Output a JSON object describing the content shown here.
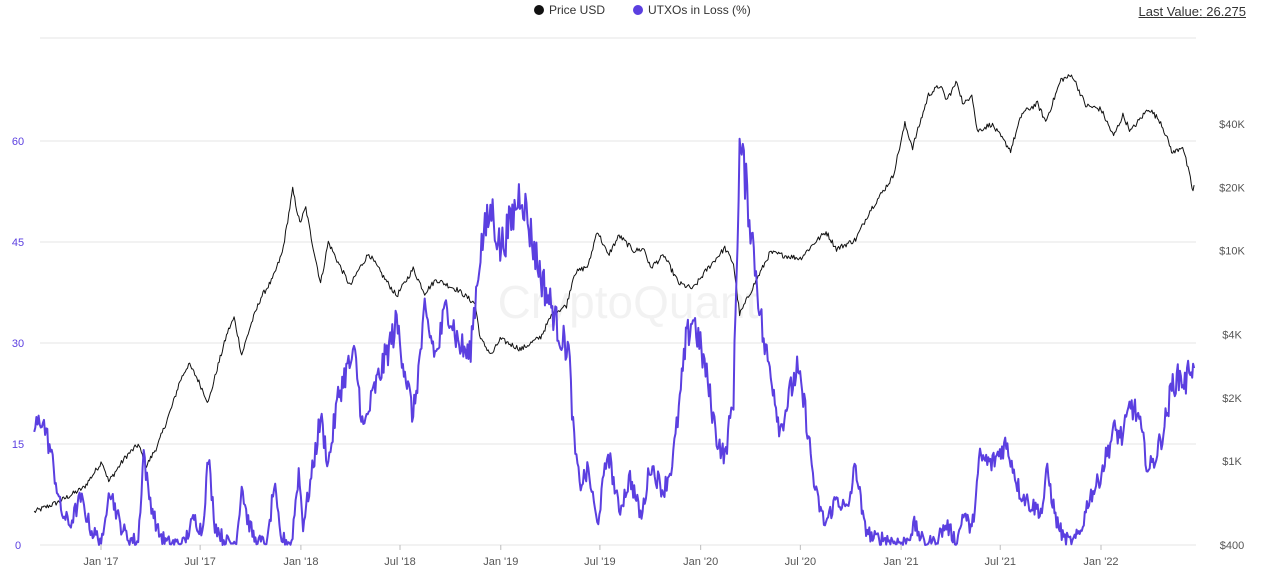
{
  "legend": {
    "price_label": "Price USD",
    "utxo_label": "UTXOs in Loss (%)"
  },
  "last_value": {
    "label": "Last Value:",
    "value": "26.275"
  },
  "watermark": "CryptoQuant",
  "colors": {
    "price": "#111111",
    "utxo": "#5b3fe0",
    "left_axis": "#5b3fe0",
    "right_axis": "#555555",
    "grid": "#e6e6e6"
  },
  "chart_data": {
    "type": "line",
    "x_labels": [
      "Jan '17",
      "Jul '17",
      "Jan '18",
      "Jul '18",
      "Jan '19",
      "Jul '19",
      "Jan '20",
      "Jul '20",
      "Jan '21",
      "Jul '21",
      "Jan '22"
    ],
    "x_range": [
      "2016-09-01",
      "2022-06-20"
    ],
    "left_axis": {
      "ticks": [
        "0",
        "15",
        "30",
        "45",
        "60"
      ],
      "range": [
        0,
        60
      ],
      "series": "UTXOs in Loss (%)"
    },
    "right_axis": {
      "ticks": [
        "$400",
        "$1K",
        "$2K",
        "$4K",
        "$10K",
        "$20K",
        "$40K"
      ],
      "scale": "log",
      "series": "Price USD"
    },
    "grid": true,
    "legend_position": "top-center",
    "series": [
      {
        "name": "Price USD",
        "axis": "right",
        "points": [
          [
            "2016-09-01",
            575
          ],
          [
            "2016-10-15",
            640
          ],
          [
            "2016-12-01",
            750
          ],
          [
            "2017-01-03",
            1000
          ],
          [
            "2017-01-15",
            800
          ],
          [
            "2017-02-15",
            1050
          ],
          [
            "2017-03-10",
            1200
          ],
          [
            "2017-03-25",
            950
          ],
          [
            "2017-04-15",
            1200
          ],
          [
            "2017-05-10",
            1800
          ],
          [
            "2017-05-25",
            2400
          ],
          [
            "2017-06-10",
            2900
          ],
          [
            "2017-06-25",
            2500
          ],
          [
            "2017-07-16",
            1900
          ],
          [
            "2017-08-01",
            2750
          ],
          [
            "2017-08-20",
            4100
          ],
          [
            "2017-09-01",
            4800
          ],
          [
            "2017-09-15",
            3200
          ],
          [
            "2017-10-01",
            4400
          ],
          [
            "2017-10-20",
            6000
          ],
          [
            "2017-11-10",
            7300
          ],
          [
            "2017-11-28",
            9800
          ],
          [
            "2017-12-10",
            15000
          ],
          [
            "2017-12-17",
            19500
          ],
          [
            "2017-12-30",
            13500
          ],
          [
            "2018-01-10",
            16000
          ],
          [
            "2018-01-20",
            11500
          ],
          [
            "2018-02-06",
            7000
          ],
          [
            "2018-02-20",
            11000
          ],
          [
            "2018-03-10",
            8800
          ],
          [
            "2018-04-01",
            6800
          ],
          [
            "2018-04-15",
            8000
          ],
          [
            "2018-05-05",
            9700
          ],
          [
            "2018-06-01",
            7500
          ],
          [
            "2018-06-25",
            6100
          ],
          [
            "2018-07-25",
            8200
          ],
          [
            "2018-08-15",
            6300
          ],
          [
            "2018-09-05",
            7300
          ],
          [
            "2018-10-15",
            6500
          ],
          [
            "2018-11-15",
            5600
          ],
          [
            "2018-11-25",
            3800
          ],
          [
            "2018-12-15",
            3200
          ],
          [
            "2018-12-31",
            3800
          ],
          [
            "2019-02-07",
            3400
          ],
          [
            "2019-03-15",
            3900
          ],
          [
            "2019-04-05",
            5000
          ],
          [
            "2019-05-01",
            5500
          ],
          [
            "2019-05-15",
            7800
          ],
          [
            "2019-06-10",
            8500
          ],
          [
            "2019-06-26",
            12500
          ],
          [
            "2019-07-16",
            9500
          ],
          [
            "2019-08-05",
            11800
          ],
          [
            "2019-09-01",
            10000
          ],
          [
            "2019-09-20",
            10200
          ],
          [
            "2019-10-01",
            8300
          ],
          [
            "2019-10-26",
            9500
          ],
          [
            "2019-11-22",
            7000
          ],
          [
            "2019-12-18",
            6600
          ],
          [
            "2020-01-10",
            8000
          ],
          [
            "2020-02-14",
            10300
          ],
          [
            "2020-03-01",
            8700
          ],
          [
            "2020-03-12",
            5000
          ],
          [
            "2020-03-16",
            5200
          ],
          [
            "2020-04-05",
            6700
          ],
          [
            "2020-05-07",
            9800
          ],
          [
            "2020-06-01",
            9500
          ],
          [
            "2020-07-01",
            9200
          ],
          [
            "2020-07-28",
            11000
          ],
          [
            "2020-08-17",
            12300
          ],
          [
            "2020-09-05",
            10200
          ],
          [
            "2020-10-10",
            11300
          ],
          [
            "2020-11-05",
            15500
          ],
          [
            "2020-11-25",
            18500
          ],
          [
            "2020-12-17",
            22500
          ],
          [
            "2021-01-08",
            40000
          ],
          [
            "2021-01-22",
            31000
          ],
          [
            "2021-02-20",
            55000
          ],
          [
            "2021-03-13",
            61000
          ],
          [
            "2021-03-25",
            52000
          ],
          [
            "2021-04-13",
            63500
          ],
          [
            "2021-04-25",
            49000
          ],
          [
            "2021-05-10",
            56000
          ],
          [
            "2021-05-20",
            37000
          ],
          [
            "2021-06-15",
            40000
          ],
          [
            "2021-07-20",
            30000
          ],
          [
            "2021-08-10",
            45000
          ],
          [
            "2021-09-07",
            50000
          ],
          [
            "2021-09-22",
            41000
          ],
          [
            "2021-10-20",
            65000
          ],
          [
            "2021-11-10",
            68000
          ],
          [
            "2021-12-04",
            49000
          ],
          [
            "2022-01-01",
            47000
          ],
          [
            "2022-01-24",
            35000
          ],
          [
            "2022-02-10",
            44000
          ],
          [
            "2022-02-24",
            37000
          ],
          [
            "2022-03-29",
            47500
          ],
          [
            "2022-04-20",
            41000
          ],
          [
            "2022-05-12",
            29000
          ],
          [
            "2022-05-30",
            31500
          ],
          [
            "2022-06-13",
            22000
          ],
          [
            "2022-06-18",
            19000
          ],
          [
            "2022-06-20",
            20500
          ]
        ]
      },
      {
        "name": "UTXOs in Loss (%)",
        "axis": "left",
        "points": [
          [
            "2016-09-01",
            17
          ],
          [
            "2016-09-15",
            19
          ],
          [
            "2016-10-01",
            14
          ],
          [
            "2016-10-20",
            5
          ],
          [
            "2016-11-05",
            3
          ],
          [
            "2016-11-25",
            7
          ],
          [
            "2016-12-15",
            2
          ],
          [
            "2017-01-05",
            0.5
          ],
          [
            "2017-01-15",
            9
          ],
          [
            "2017-02-05",
            3
          ],
          [
            "2017-02-20",
            1
          ],
          [
            "2017-03-10",
            0.5
          ],
          [
            "2017-03-20",
            14
          ],
          [
            "2017-03-28",
            8
          ],
          [
            "2017-04-15",
            2
          ],
          [
            "2017-05-01",
            0.3
          ],
          [
            "2017-06-01",
            0.2
          ],
          [
            "2017-06-20",
            4
          ],
          [
            "2017-07-05",
            2
          ],
          [
            "2017-07-16",
            13
          ],
          [
            "2017-07-28",
            3
          ],
          [
            "2017-08-15",
            0.5
          ],
          [
            "2017-09-05",
            0.3
          ],
          [
            "2017-09-15",
            9
          ],
          [
            "2017-09-25",
            4
          ],
          [
            "2017-10-10",
            0.5
          ],
          [
            "2017-11-01",
            0.3
          ],
          [
            "2017-11-13",
            9
          ],
          [
            "2017-11-25",
            1
          ],
          [
            "2017-12-15",
            0.3
          ],
          [
            "2017-12-28",
            11
          ],
          [
            "2018-01-05",
            3
          ],
          [
            "2018-01-20",
            10
          ],
          [
            "2018-02-06",
            19
          ],
          [
            "2018-02-20",
            12
          ],
          [
            "2018-03-10",
            22
          ],
          [
            "2018-03-25",
            26
          ],
          [
            "2018-04-10",
            28
          ],
          [
            "2018-04-25",
            17
          ],
          [
            "2018-05-15",
            23
          ],
          [
            "2018-06-01",
            27
          ],
          [
            "2018-06-25",
            33
          ],
          [
            "2018-07-10",
            26
          ],
          [
            "2018-07-25",
            19
          ],
          [
            "2018-08-15",
            34
          ],
          [
            "2018-09-05",
            28
          ],
          [
            "2018-09-25",
            36
          ],
          [
            "2018-10-15",
            30
          ],
          [
            "2018-11-05",
            28
          ],
          [
            "2018-11-25",
            44
          ],
          [
            "2018-12-15",
            50
          ],
          [
            "2018-12-31",
            44
          ],
          [
            "2019-01-20",
            48
          ],
          [
            "2019-02-07",
            53
          ],
          [
            "2019-02-25",
            46
          ],
          [
            "2019-03-15",
            40
          ],
          [
            "2019-04-05",
            35
          ],
          [
            "2019-04-20",
            31
          ],
          [
            "2019-05-05",
            29
          ],
          [
            "2019-05-15",
            15
          ],
          [
            "2019-05-25",
            9
          ],
          [
            "2019-06-10",
            11
          ],
          [
            "2019-06-26",
            3
          ],
          [
            "2019-07-16",
            14
          ],
          [
            "2019-08-05",
            5
          ],
          [
            "2019-08-25",
            10
          ],
          [
            "2019-09-15",
            4
          ],
          [
            "2019-10-01",
            12
          ],
          [
            "2019-10-25",
            8
          ],
          [
            "2019-11-10",
            12
          ],
          [
            "2019-11-22",
            20
          ],
          [
            "2019-12-05",
            30
          ],
          [
            "2019-12-18",
            34
          ],
          [
            "2020-01-10",
            26
          ],
          [
            "2020-01-30",
            16
          ],
          [
            "2020-02-14",
            13
          ],
          [
            "2020-03-01",
            22
          ],
          [
            "2020-03-12",
            59
          ],
          [
            "2020-03-20",
            56
          ],
          [
            "2020-04-05",
            45
          ],
          [
            "2020-04-25",
            30
          ],
          [
            "2020-05-10",
            25
          ],
          [
            "2020-05-25",
            17
          ],
          [
            "2020-06-10",
            22
          ],
          [
            "2020-06-25",
            26
          ],
          [
            "2020-07-10",
            20
          ],
          [
            "2020-07-28",
            8
          ],
          [
            "2020-08-15",
            3
          ],
          [
            "2020-09-05",
            7
          ],
          [
            "2020-09-25",
            5
          ],
          [
            "2020-10-10",
            12
          ],
          [
            "2020-10-25",
            3
          ],
          [
            "2020-11-10",
            1
          ],
          [
            "2020-12-01",
            1
          ],
          [
            "2020-12-20",
            0.5
          ],
          [
            "2021-01-10",
            0.3
          ],
          [
            "2021-01-25",
            3
          ],
          [
            "2021-02-10",
            0.5
          ],
          [
            "2021-03-01",
            0.3
          ],
          [
            "2021-03-25",
            3
          ],
          [
            "2021-04-13",
            0.3
          ],
          [
            "2021-04-25",
            5
          ],
          [
            "2021-05-10",
            2
          ],
          [
            "2021-05-25",
            13
          ],
          [
            "2021-06-15",
            12
          ],
          [
            "2021-07-10",
            15
          ],
          [
            "2021-07-20",
            13
          ],
          [
            "2021-08-05",
            8
          ],
          [
            "2021-08-25",
            6
          ],
          [
            "2021-09-15",
            5
          ],
          [
            "2021-09-25",
            11
          ],
          [
            "2021-10-10",
            4
          ],
          [
            "2021-10-25",
            1
          ],
          [
            "2021-11-10",
            0.3
          ],
          [
            "2021-11-25",
            2
          ],
          [
            "2021-12-10",
            7
          ],
          [
            "2021-12-25",
            9
          ],
          [
            "2022-01-10",
            13
          ],
          [
            "2022-01-24",
            17
          ],
          [
            "2022-02-10",
            16
          ],
          [
            "2022-02-24",
            21
          ],
          [
            "2022-03-10",
            19
          ],
          [
            "2022-03-29",
            11
          ],
          [
            "2022-04-10",
            13
          ],
          [
            "2022-04-25",
            17
          ],
          [
            "2022-05-12",
            24
          ],
          [
            "2022-05-25",
            25
          ],
          [
            "2022-06-05",
            24
          ],
          [
            "2022-06-13",
            27
          ],
          [
            "2022-06-20",
            26.275
          ]
        ]
      }
    ]
  }
}
